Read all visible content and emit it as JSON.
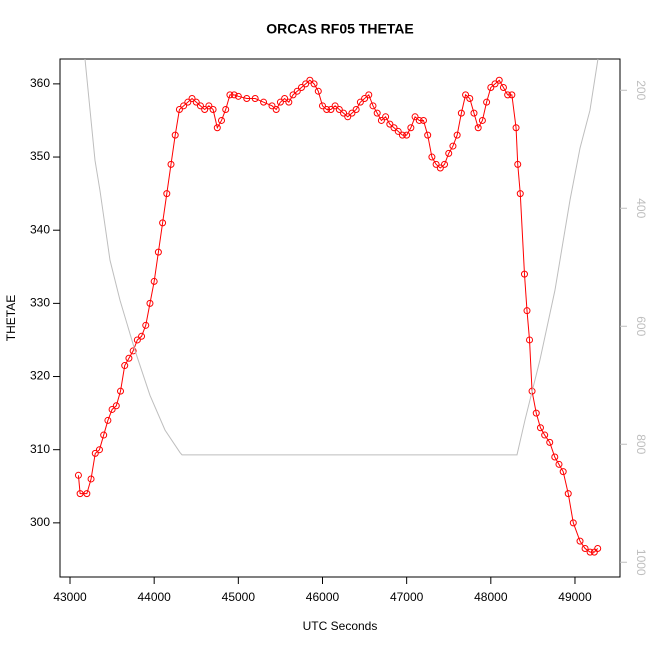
{
  "chart_data": {
    "type": "line",
    "title": "ORCAS RF05 THETAE",
    "x_label": "UTC Seconds",
    "y_label": "THETAE",
    "xlim": [
      42881,
      49535
    ],
    "xticks": [
      43000,
      44000,
      45000,
      46000,
      47000,
      48000,
      49000
    ],
    "ylim": [
      292.6,
      363.4
    ],
    "yticks": [
      300,
      310,
      320,
      330,
      340,
      350,
      360
    ],
    "y2lim": [
      1025,
      147
    ],
    "y2ticks": [
      200,
      400,
      600,
      800,
      1000
    ],
    "series": [
      {
        "color": "#ff0000",
        "markers": true,
        "x": [
          43100,
          43120,
          43200,
          43250,
          43300,
          43350,
          43400,
          43450,
          43500,
          43550,
          43600,
          43650,
          43700,
          43750,
          43800,
          43850,
          43900,
          43950,
          44000,
          44050,
          44100,
          44150,
          44200,
          44250,
          44300,
          44350,
          44400,
          44450,
          44500,
          44550,
          44600,
          44650,
          44700,
          44750,
          44800,
          44850,
          44900,
          44950,
          45000,
          45100,
          45200,
          45300,
          45400,
          45450,
          45500,
          45550,
          45600,
          45650,
          45700,
          45750,
          45800,
          45850,
          45900,
          45950,
          46000,
          46050,
          46100,
          46150,
          46200,
          46250,
          46300,
          46350,
          46400,
          46450,
          46500,
          46550,
          46600,
          46650,
          46700,
          46750,
          46800,
          46850,
          46900,
          46950,
          47000,
          47050,
          47100,
          47150,
          47200,
          47250,
          47300,
          47350,
          47400,
          47450,
          47500,
          47550,
          47600,
          47650,
          47700,
          47750,
          47800,
          47850,
          47900,
          47950,
          48000,
          48050,
          48100,
          48150,
          48200,
          48250,
          48300,
          48320,
          48350,
          48400,
          48430,
          48460,
          48490,
          48540,
          48590,
          48640,
          48700,
          48760,
          48810,
          48860,
          48920,
          48980,
          49060,
          49120,
          49180,
          49230,
          49270
        ],
        "values": [
          306.5,
          304,
          304,
          306,
          309.5,
          310,
          312,
          314,
          315.5,
          316,
          318,
          321.5,
          322.5,
          323.5,
          325,
          325.5,
          327,
          330,
          333,
          337,
          341,
          345,
          349,
          353,
          356.5,
          357,
          357.5,
          358,
          357.5,
          357,
          356.5,
          357,
          356.5,
          354,
          355,
          356.5,
          358.5,
          358.5,
          358.3,
          358,
          358,
          357.5,
          357,
          356.5,
          357.5,
          358,
          357.5,
          358.5,
          359,
          359.5,
          360,
          360.5,
          360,
          359,
          357,
          356.5,
          356.5,
          357,
          356.5,
          356,
          355.5,
          356,
          356.5,
          357.5,
          358,
          358.5,
          357,
          356,
          355,
          355.5,
          354.5,
          354,
          353.5,
          353,
          353,
          354,
          355.5,
          355,
          355,
          353,
          350,
          349,
          348.5,
          349,
          350.5,
          351.5,
          353,
          356,
          358.5,
          358,
          356,
          354,
          355,
          357.5,
          359.5,
          360,
          360.5,
          359.5,
          358.5,
          358.5,
          354,
          349,
          345,
          334,
          329,
          325,
          318,
          315,
          313,
          312,
          311,
          309,
          308,
          307,
          304,
          300,
          297.5,
          296.5,
          296,
          296,
          296.5
        ]
      },
      {
        "color": "#bebebe",
        "axis": "y2",
        "markers": false,
        "x": [
          43178,
          43297,
          43356,
          43475,
          43594,
          43772,
          43950,
          44129,
          44307,
          44331,
          48311,
          48406,
          48584,
          48762,
          48941,
          49060,
          49178,
          49273
        ],
        "values": [
          147,
          319,
          370,
          488,
          556,
          641,
          717,
          776,
          814,
          818,
          818,
          759,
          657,
          539,
          386,
          298,
          234,
          147
        ]
      }
    ]
  }
}
